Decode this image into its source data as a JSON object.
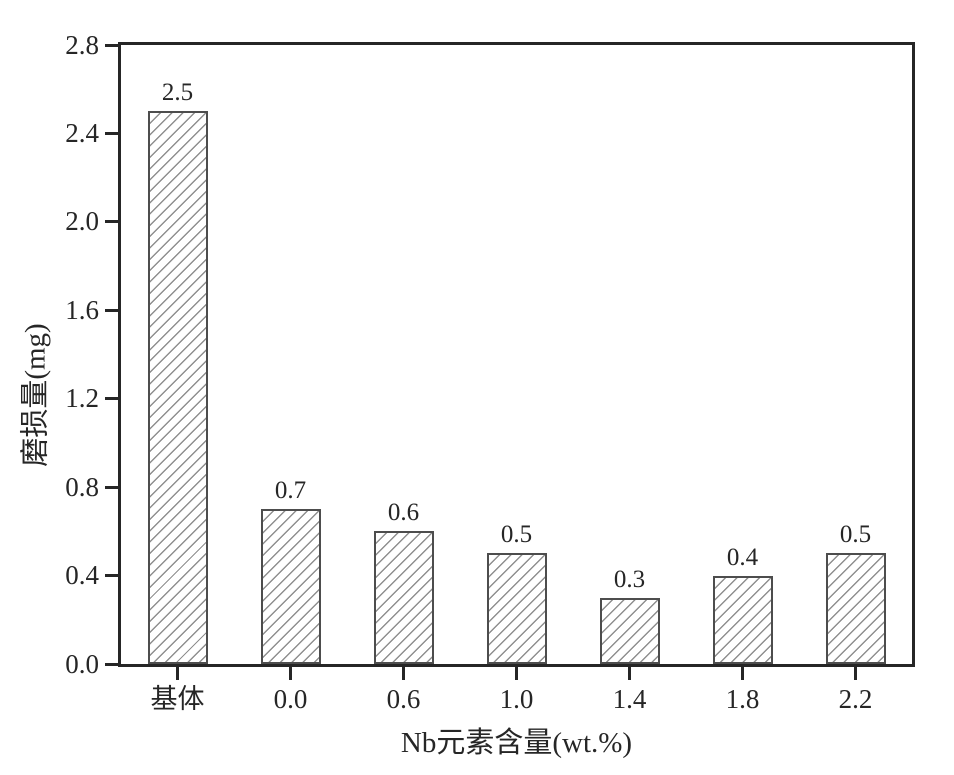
{
  "chart_data": {
    "type": "bar",
    "title": "",
    "xlabel": "Nb元素含量(wt.%)",
    "ylabel": "磨损量(mg)",
    "categories": [
      "基体",
      "0.0",
      "0.6",
      "1.0",
      "1.4",
      "1.8",
      "2.2"
    ],
    "values": [
      2.5,
      0.7,
      0.6,
      0.5,
      0.3,
      0.4,
      0.5
    ],
    "bar_labels": [
      "2.5",
      "0.7",
      "0.6",
      "0.5",
      "0.3",
      "0.4",
      "0.5"
    ],
    "ylim": [
      0.0,
      2.8
    ],
    "ytick_step": 0.4,
    "ytick_labels": [
      "0.0",
      "0.4",
      "0.8",
      "1.2",
      "1.6",
      "2.0",
      "2.4",
      "2.8"
    ],
    "grid": false,
    "legend": "none",
    "bar_style": {
      "fill": "#ffffff",
      "hatch": "diagonal-forward-slash",
      "hatch_color": "#8f8f8f",
      "edge_color": "#4d4d4d"
    },
    "colors": {
      "axis": "#262626",
      "text": "#262626",
      "background": "#ffffff"
    }
  }
}
